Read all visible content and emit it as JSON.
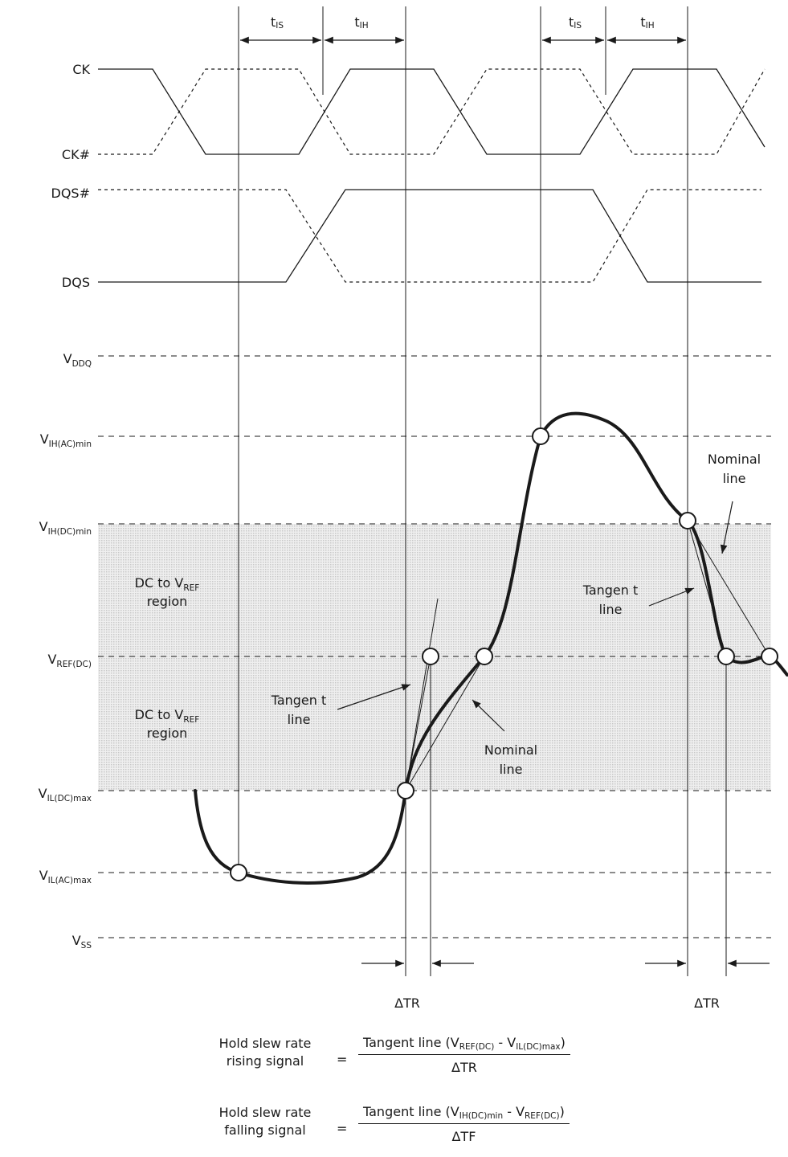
{
  "signals": {
    "ck": "CK",
    "ck_n": "CK#",
    "dqs_n": "DQS#",
    "dqs": "DQS"
  },
  "timing": {
    "tis_1": {
      "main": "t",
      "sub": "IS"
    },
    "tih_1": {
      "main": "t",
      "sub": "IH"
    },
    "tis_2": {
      "main": "t",
      "sub": "IS"
    },
    "tih_2": {
      "main": "t",
      "sub": "IH"
    }
  },
  "levels": {
    "vddq": {
      "main": "V",
      "sub": "DDQ"
    },
    "vih_ac": {
      "main": "V",
      "sub": "IH(AC)min"
    },
    "vih_dc": {
      "main": "V",
      "sub": "IH(DC)min"
    },
    "vref": {
      "main": "V",
      "sub": "REF(DC)"
    },
    "vil_dc": {
      "main": "V",
      "sub": "IL(DC)max"
    },
    "vil_ac": {
      "main": "V",
      "sub": "IL(AC)max"
    },
    "vss": {
      "main": "V",
      "sub": "SS"
    }
  },
  "regions": {
    "upper": {
      "line1_prefix": "DC to V",
      "line1_sub": "REF",
      "line2": "region"
    },
    "lower": {
      "line1_prefix": "DC to V",
      "line1_sub": "REF",
      "line2": "region"
    }
  },
  "annotations": {
    "tangent_left": {
      "line1": "Tangen t",
      "line2": "line"
    },
    "nominal_left": {
      "line1": "Nominal",
      "line2": "line"
    },
    "tangent_right": {
      "line1": "Tangen t",
      "line2": "line"
    },
    "nominal_right": {
      "line1": "Nominal",
      "line2": "line"
    },
    "delta_tr_left": "ΔTR",
    "delta_tr_right": "ΔTR"
  },
  "equations": {
    "rising": {
      "label_line1": "Hold slew rate",
      "label_line2": "rising signal",
      "equals": "=",
      "num_prefix": "Tangent line (V",
      "num_sub1": "REF(DC)",
      "num_mid": " - V",
      "num_sub2": "IL(DC)max",
      "num_suffix": ")",
      "denominator": "ΔTR"
    },
    "falling": {
      "label_line1": "Hold slew rate",
      "label_line2": "falling signal",
      "equals": "=",
      "num_prefix": "Tangent line (V",
      "num_sub1": "IH(DC)min",
      "num_mid": " - V",
      "num_sub2": "REF(DC)",
      "num_suffix": ")",
      "denominator": "ΔTF"
    }
  },
  "colors": {
    "ink": "#1a1a1a",
    "region_fill": "#d9d9d9"
  }
}
